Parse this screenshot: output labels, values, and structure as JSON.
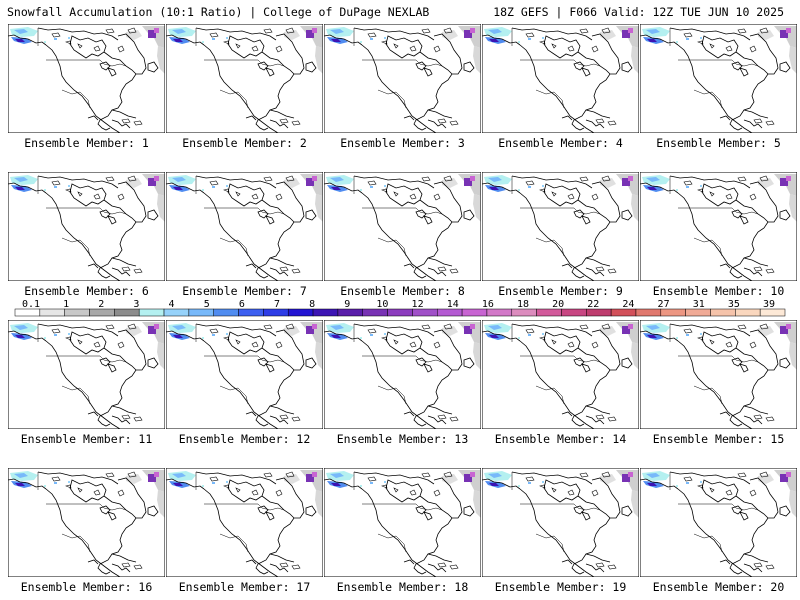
{
  "header": {
    "left": "Snowfall Accumulation (10:1 Ratio) | College of DuPage NEXLAB",
    "right": "18Z GEFS | F066 Valid: 12Z TUE JUN 10 2025"
  },
  "panels": [
    {
      "label": "Ensemble Member: 1"
    },
    {
      "label": "Ensemble Member: 2"
    },
    {
      "label": "Ensemble Member: 3"
    },
    {
      "label": "Ensemble Member: 4"
    },
    {
      "label": "Ensemble Member: 5"
    },
    {
      "label": "Ensemble Member: 6"
    },
    {
      "label": "Ensemble Member: 7"
    },
    {
      "label": "Ensemble Member: 8"
    },
    {
      "label": "Ensemble Member: 9"
    },
    {
      "label": "Ensemble Member: 10"
    },
    {
      "label": "Ensemble Member: 11"
    },
    {
      "label": "Ensemble Member: 12"
    },
    {
      "label": "Ensemble Member: 13"
    },
    {
      "label": "Ensemble Member: 14"
    },
    {
      "label": "Ensemble Member: 15"
    },
    {
      "label": "Ensemble Member: 16"
    },
    {
      "label": "Ensemble Member: 17"
    },
    {
      "label": "Ensemble Member: 18"
    },
    {
      "label": "Ensemble Member: 19"
    },
    {
      "label": "Ensemble Member: 20"
    }
  ],
  "colorbar": {
    "labels": [
      "0.1",
      "1",
      "2",
      "3",
      "4",
      "5",
      "6",
      "7",
      "8",
      "9",
      "10",
      "12",
      "14",
      "16",
      "18",
      "20",
      "22",
      "24",
      "27",
      "31",
      "35",
      "39"
    ],
    "colors": [
      "#ffffff",
      "#e6e6e6",
      "#c8c8c8",
      "#a8a8a8",
      "#8c8c8c",
      "#b4f0f0",
      "#96d2fa",
      "#78b9fa",
      "#508cf0",
      "#3c5ff0",
      "#2d3ce6",
      "#2314d2",
      "#3c14b4",
      "#5a1eaa",
      "#7832b4",
      "#8c3cbe",
      "#a050c8",
      "#b45ad2",
      "#c864d2",
      "#d278c8",
      "#dc8cbe",
      "#d25a9b",
      "#c84682",
      "#be3c6e",
      "#d2505a",
      "#e0786e",
      "#ec9682",
      "#f0aa96",
      "#f5c3aa",
      "#fad7be",
      "#fde9d7"
    ]
  }
}
